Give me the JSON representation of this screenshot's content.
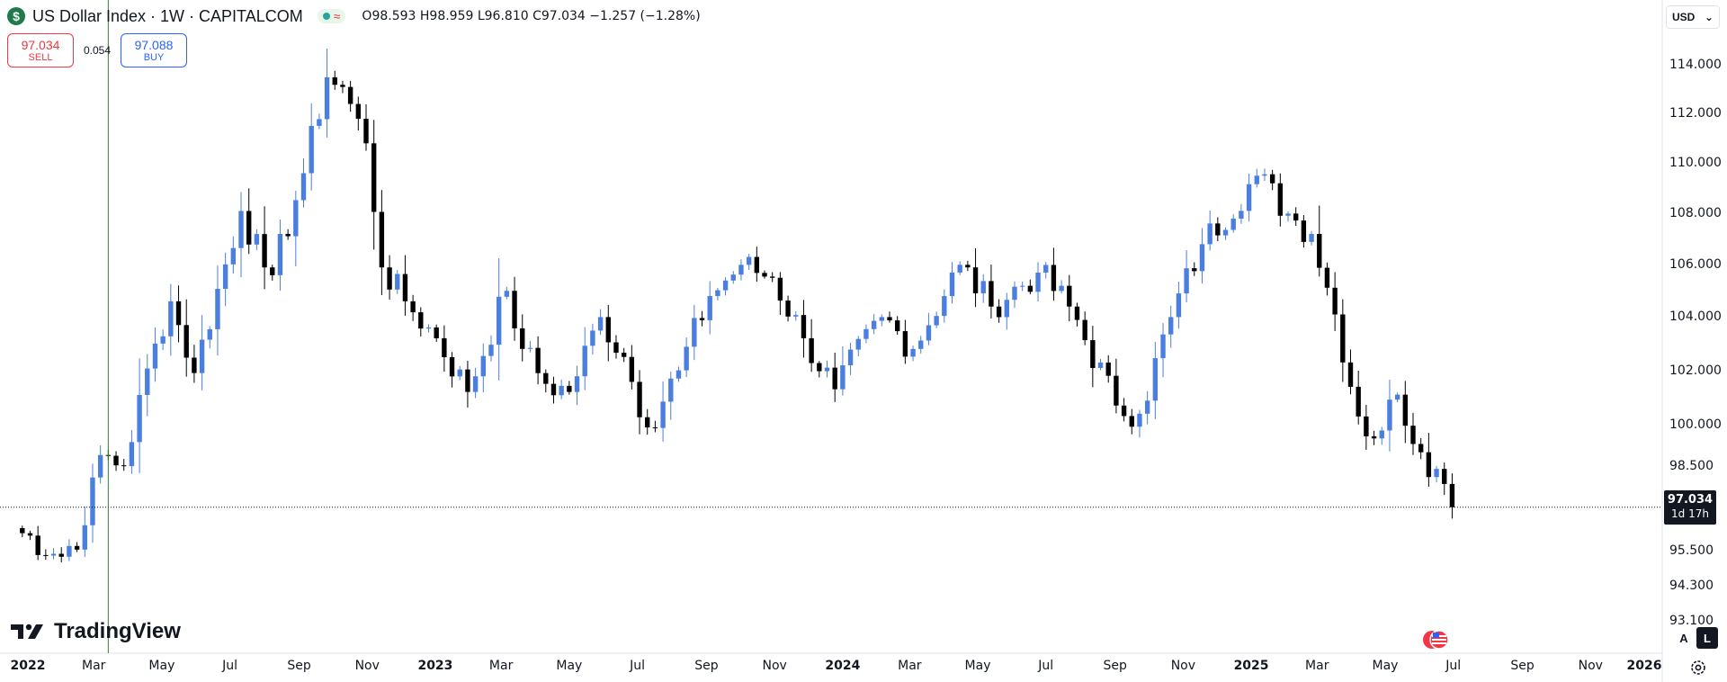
{
  "header": {
    "logo_glyph": "$",
    "title": "US Dollar Index · 1W · CAPITALCOM",
    "status_glyph": "≈",
    "ohlc_text": "O98.593 H98.959 L96.810 C97.034 −1.257 (−1.28%)"
  },
  "trade": {
    "sell_price": "97.034",
    "sell_label": "SELL",
    "spread": "0.054",
    "buy_price": "97.088",
    "buy_label": "BUY"
  },
  "currency": {
    "label": "USD",
    "chevron": "⌄"
  },
  "last_price": {
    "price": "97.034",
    "countdown": "1d 17h"
  },
  "watermark": {
    "text": "TradingView"
  },
  "scale_buttons": {
    "auto": "A",
    "log": "L"
  },
  "colors": {
    "up": "#4a7fe0",
    "down": "#000000",
    "crosshair": "#2e7d32",
    "sell": "#f23645",
    "buy": "#2962ff"
  },
  "icons": [
    "dollar-logo-icon",
    "tradingview-logo-icon",
    "us-flag-icon",
    "gear-icon",
    "chevron-down-icon"
  ],
  "chart_data": {
    "type": "candlestick",
    "x_scale": "time-weekly",
    "y_scale": "log",
    "y_tick_labels": [
      "114.000",
      "112.000",
      "110.000",
      "108.000",
      "106.000",
      "104.000",
      "102.000",
      "100.000",
      "98.500",
      "97.034",
      "95.500",
      "94.300",
      "93.100"
    ],
    "y_tick_values": [
      114,
      112,
      110,
      108,
      106,
      104,
      102,
      100,
      98.5,
      97.034,
      95.5,
      94.3,
      93.1
    ],
    "ylim": [
      92.4,
      115.6
    ],
    "x_tick_labels": [
      "2022",
      "Mar",
      "May",
      "Jul",
      "Sep",
      "Nov",
      "2023",
      "Mar",
      "May",
      "Jul",
      "Sep",
      "Nov",
      "2024",
      "Mar",
      "May",
      "Jul",
      "Sep",
      "Nov",
      "2025",
      "Mar",
      "May",
      "Jul",
      "Sep",
      "Nov",
      "2026"
    ],
    "x_tick_dates": [
      "2022-01-01",
      "2022-03-01",
      "2022-05-01",
      "2022-07-01",
      "2022-09-01",
      "2022-11-01",
      "2023-01-01",
      "2023-03-01",
      "2023-05-01",
      "2023-07-01",
      "2023-09-01",
      "2023-11-01",
      "2024-01-01",
      "2024-03-01",
      "2024-05-01",
      "2024-07-01",
      "2024-09-01",
      "2024-11-01",
      "2025-01-01",
      "2025-03-01",
      "2025-05-01",
      "2025-07-01",
      "2025-09-01",
      "2025-11-01",
      "2026-01-01"
    ],
    "x_tick_bold": [
      true,
      false,
      false,
      false,
      false,
      false,
      true,
      false,
      false,
      false,
      false,
      false,
      true,
      false,
      false,
      false,
      false,
      false,
      true,
      false,
      false,
      false,
      false,
      false,
      true
    ],
    "crosshair_date": "2022-03-14",
    "last_close": 97.034,
    "anchors": [
      [
        "2021-12-20",
        96.3
      ],
      [
        "2022-01-31",
        95.3
      ],
      [
        "2022-02-21",
        96.4
      ],
      [
        "2022-03-07",
        98.9
      ],
      [
        "2022-03-28",
        98.5
      ],
      [
        "2022-04-25",
        103.0
      ],
      [
        "2022-05-09",
        104.6
      ],
      [
        "2022-05-30",
        101.9
      ],
      [
        "2022-07-11",
        108.1
      ],
      [
        "2022-08-01",
        105.9
      ],
      [
        "2022-08-08",
        105.6
      ],
      [
        "2022-09-05",
        109.6
      ],
      [
        "2022-09-26",
        113.5
      ],
      [
        "2022-10-10",
        113.1
      ],
      [
        "2022-10-31",
        110.8
      ],
      [
        "2022-11-14",
        105.9
      ],
      [
        "2022-12-05",
        104.6
      ],
      [
        "2023-01-02",
        103.2
      ],
      [
        "2023-01-30",
        101.2
      ],
      [
        "2023-03-06",
        105.0
      ],
      [
        "2023-03-20",
        102.8
      ],
      [
        "2023-04-10",
        101.5
      ],
      [
        "2023-05-01",
        101.2
      ],
      [
        "2023-05-29",
        104.0
      ],
      [
        "2023-06-19",
        102.5
      ],
      [
        "2023-07-10",
        99.9
      ],
      [
        "2023-08-07",
        102.0
      ],
      [
        "2023-09-04",
        104.8
      ],
      [
        "2023-10-02",
        106.0
      ],
      [
        "2023-10-30",
        105.5
      ],
      [
        "2023-11-27",
        103.2
      ],
      [
        "2023-12-25",
        101.3
      ],
      [
        "2024-02-05",
        104.0
      ],
      [
        "2024-03-04",
        102.8
      ],
      [
        "2024-04-15",
        106.0
      ],
      [
        "2024-05-13",
        104.4
      ],
      [
        "2024-06-24",
        105.7
      ],
      [
        "2024-07-22",
        104.4
      ],
      [
        "2024-09-02",
        100.7
      ],
      [
        "2024-09-23",
        100.4
      ],
      [
        "2024-10-21",
        104.0
      ],
      [
        "2024-11-18",
        106.8
      ],
      [
        "2025-01-06",
        109.5
      ],
      [
        "2025-02-03",
        108.0
      ],
      [
        "2025-02-24",
        107.2
      ],
      [
        "2025-03-17",
        104.1
      ],
      [
        "2025-04-07",
        100.3
      ],
      [
        "2025-04-21",
        99.5
      ],
      [
        "2025-05-12",
        101.1
      ],
      [
        "2025-06-02",
        99.0
      ],
      [
        "2025-06-16",
        98.4
      ],
      [
        "2025-06-30",
        97.034
      ]
    ]
  }
}
